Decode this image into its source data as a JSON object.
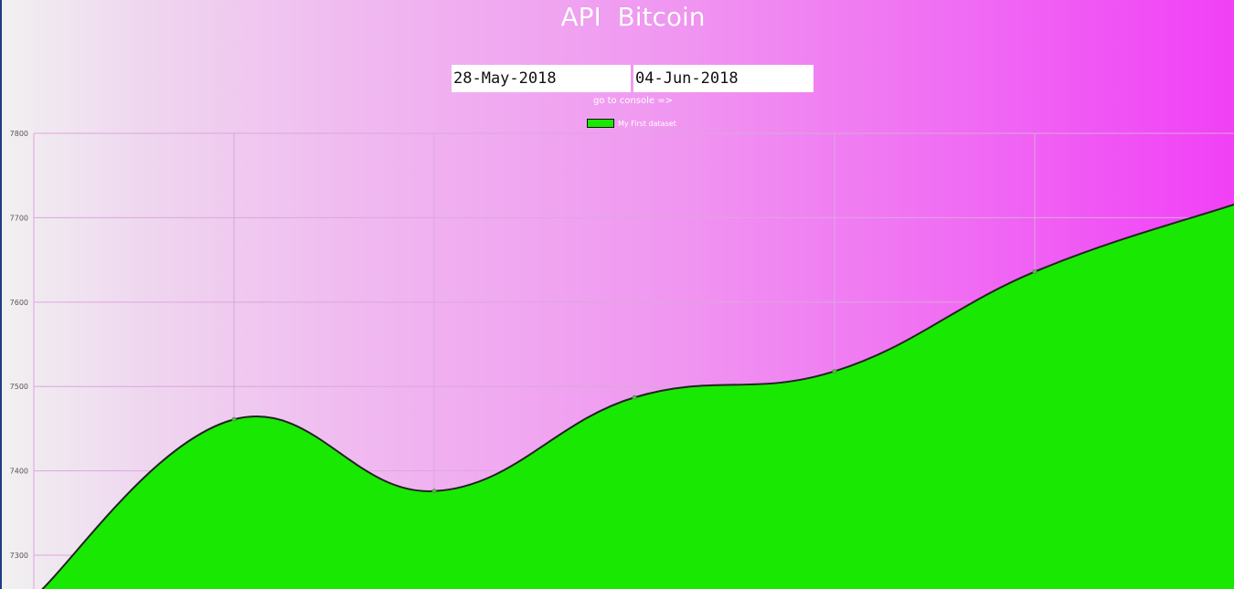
{
  "page": {
    "title": "API  Bitcoin",
    "start_date": "28-May-2018",
    "end_date": "04-Jun-2018",
    "console_link": "go to console =>"
  },
  "colors": {
    "fill": "#19e902",
    "line": "#222222",
    "grid": "#dca6dc"
  },
  "chart_data": {
    "type": "area",
    "title": "",
    "xlabel": "",
    "ylabel": "",
    "x": [
      "",
      "",
      "",
      "",
      "",
      "",
      ""
    ],
    "series": [
      {
        "name": "My First dataset",
        "values": [
          7250,
          7461,
          7376,
          7487,
          7518,
          7636,
          7716
        ]
      }
    ],
    "ylim": [
      7260,
      7800
    ],
    "yticks": [
      7300,
      7400,
      7500,
      7600,
      7700,
      7800
    ],
    "grid": true,
    "legend": "top-center"
  }
}
